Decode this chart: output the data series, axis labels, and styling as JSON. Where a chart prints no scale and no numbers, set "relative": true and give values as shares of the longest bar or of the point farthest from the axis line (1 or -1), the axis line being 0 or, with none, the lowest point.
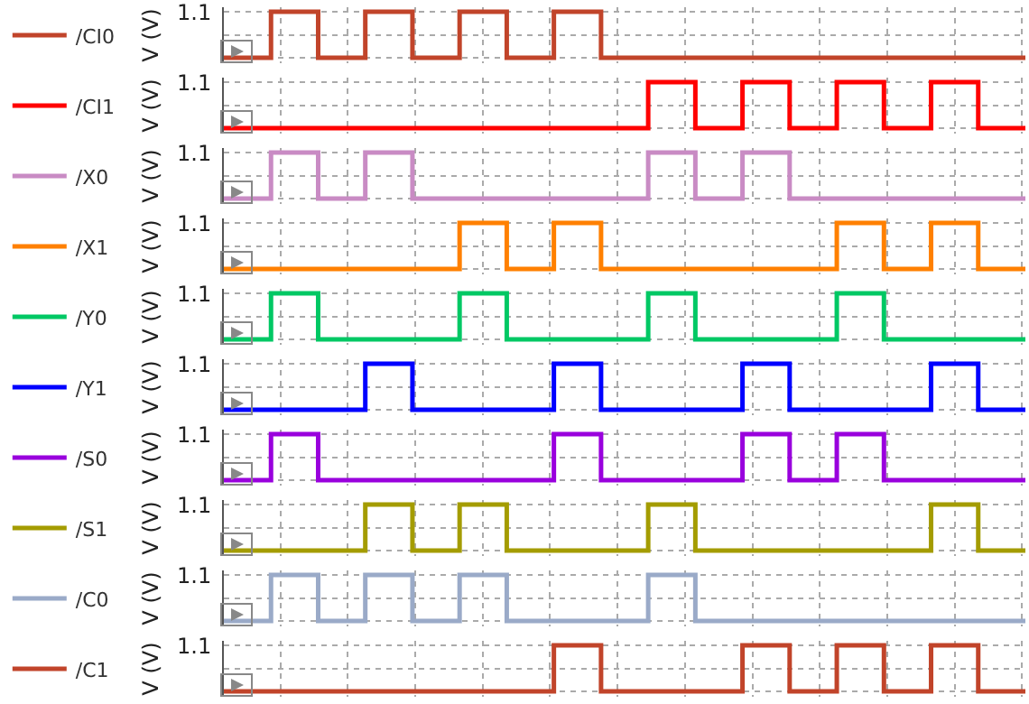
{
  "chart_data": [
    {
      "type": "step",
      "relative": true,
      "grid": true,
      "legend": "left",
      "ylabel": "V (V)",
      "annotations": [
        "1.1"
      ],
      "categories": [
        null,
        null,
        null,
        null,
        null,
        null,
        null,
        null,
        null,
        null,
        null,
        null,
        null,
        null,
        null,
        null,
        null,
        null
      ],
      "series": [
        {
          "name": "/CI0",
          "color": "#c1442a",
          "values": [
            0,
            1,
            0,
            1,
            0,
            1,
            0,
            1,
            0,
            0,
            0,
            0,
            0,
            0,
            0,
            0,
            0,
            0
          ]
        }
      ]
    },
    {
      "type": "step",
      "relative": true,
      "grid": true,
      "legend": "left",
      "ylabel": "V (V)",
      "annotations": [
        "1.1"
      ],
      "categories": [
        null,
        null,
        null,
        null,
        null,
        null,
        null,
        null,
        null,
        null,
        null,
        null,
        null,
        null,
        null,
        null,
        null,
        null
      ],
      "series": [
        {
          "name": "/CI1",
          "color": "#ff0000",
          "values": [
            0,
            0,
            0,
            0,
            0,
            0,
            0,
            0,
            0,
            1,
            0,
            1,
            0,
            1,
            0,
            1,
            0,
            0
          ]
        }
      ]
    },
    {
      "type": "step",
      "relative": true,
      "grid": true,
      "legend": "left",
      "ylabel": "V (V)",
      "annotations": [
        "1.1"
      ],
      "categories": [
        null,
        null,
        null,
        null,
        null,
        null,
        null,
        null,
        null,
        null,
        null,
        null,
        null,
        null,
        null,
        null,
        null,
        null
      ],
      "series": [
        {
          "name": "/X0",
          "color": "#c98bc4",
          "values": [
            0,
            1,
            0,
            1,
            0,
            0,
            0,
            0,
            0,
            1,
            0,
            1,
            0,
            0,
            0,
            0,
            0,
            0
          ]
        }
      ]
    },
    {
      "type": "step",
      "relative": true,
      "grid": true,
      "legend": "left",
      "ylabel": "V (V)",
      "annotations": [
        "1.1"
      ],
      "categories": [
        null,
        null,
        null,
        null,
        null,
        null,
        null,
        null,
        null,
        null,
        null,
        null,
        null,
        null,
        null,
        null,
        null,
        null
      ],
      "series": [
        {
          "name": "/X1",
          "color": "#ff8000",
          "values": [
            0,
            0,
            0,
            0,
            0,
            1,
            0,
            1,
            0,
            0,
            0,
            0,
            0,
            1,
            0,
            1,
            0,
            0
          ]
        }
      ]
    },
    {
      "type": "step",
      "relative": true,
      "grid": true,
      "legend": "left",
      "ylabel": "V (V)",
      "annotations": [
        "1.1"
      ],
      "categories": [
        null,
        null,
        null,
        null,
        null,
        null,
        null,
        null,
        null,
        null,
        null,
        null,
        null,
        null,
        null,
        null,
        null,
        null
      ],
      "series": [
        {
          "name": "/Y0",
          "color": "#00c864",
          "values": [
            0,
            1,
            0,
            0,
            0,
            1,
            0,
            0,
            0,
            1,
            0,
            0,
            0,
            1,
            0,
            0,
            0,
            0
          ]
        }
      ]
    },
    {
      "type": "step",
      "relative": true,
      "grid": true,
      "legend": "left",
      "ylabel": "V (V)",
      "annotations": [
        "1.1"
      ],
      "categories": [
        null,
        null,
        null,
        null,
        null,
        null,
        null,
        null,
        null,
        null,
        null,
        null,
        null,
        null,
        null,
        null,
        null,
        null
      ],
      "series": [
        {
          "name": "/Y1",
          "color": "#0000ff",
          "values": [
            0,
            0,
            0,
            1,
            0,
            0,
            0,
            1,
            0,
            0,
            0,
            1,
            0,
            0,
            0,
            1,
            0,
            0
          ]
        }
      ]
    },
    {
      "type": "step",
      "relative": true,
      "grid": true,
      "legend": "left",
      "ylabel": "V (V)",
      "annotations": [
        "1.1"
      ],
      "categories": [
        null,
        null,
        null,
        null,
        null,
        null,
        null,
        null,
        null,
        null,
        null,
        null,
        null,
        null,
        null,
        null,
        null,
        null
      ],
      "series": [
        {
          "name": "/S0",
          "color": "#9900dd",
          "values": [
            0,
            1,
            0,
            0,
            0,
            0,
            0,
            1,
            0,
            0,
            0,
            1,
            0,
            1,
            0,
            0,
            0,
            0
          ]
        }
      ]
    },
    {
      "type": "step",
      "relative": true,
      "grid": true,
      "legend": "left",
      "ylabel": "V (V)",
      "annotations": [
        "1.1"
      ],
      "categories": [
        null,
        null,
        null,
        null,
        null,
        null,
        null,
        null,
        null,
        null,
        null,
        null,
        null,
        null,
        null,
        null,
        null,
        null
      ],
      "series": [
        {
          "name": "/S1",
          "color": "#a49c00",
          "values": [
            0,
            0,
            0,
            1,
            0,
            1,
            0,
            0,
            0,
            1,
            0,
            0,
            0,
            0,
            0,
            1,
            0,
            0
          ]
        }
      ]
    },
    {
      "type": "step",
      "relative": true,
      "grid": true,
      "legend": "left",
      "ylabel": "V (V)",
      "annotations": [
        "1.1"
      ],
      "categories": [
        null,
        null,
        null,
        null,
        null,
        null,
        null,
        null,
        null,
        null,
        null,
        null,
        null,
        null,
        null,
        null,
        null,
        null
      ],
      "series": [
        {
          "name": "/C0",
          "color": "#9aaac8",
          "values": [
            0,
            1,
            0,
            1,
            0,
            1,
            0,
            0,
            0,
            1,
            0,
            0,
            0,
            0,
            0,
            0,
            0,
            0
          ]
        }
      ]
    },
    {
      "type": "step",
      "relative": true,
      "grid": true,
      "legend": "left",
      "ylabel": "V (V)",
      "annotations": [
        "1.1"
      ],
      "categories": [
        null,
        null,
        null,
        null,
        null,
        null,
        null,
        null,
        null,
        null,
        null,
        null,
        null,
        null,
        null,
        null,
        null,
        null
      ],
      "series": [
        {
          "name": "/C1",
          "color": "#c1442a",
          "values": [
            0,
            0,
            0,
            0,
            0,
            0,
            0,
            1,
            0,
            0,
            0,
            1,
            0,
            1,
            0,
            1,
            0,
            0
          ]
        }
      ]
    }
  ]
}
